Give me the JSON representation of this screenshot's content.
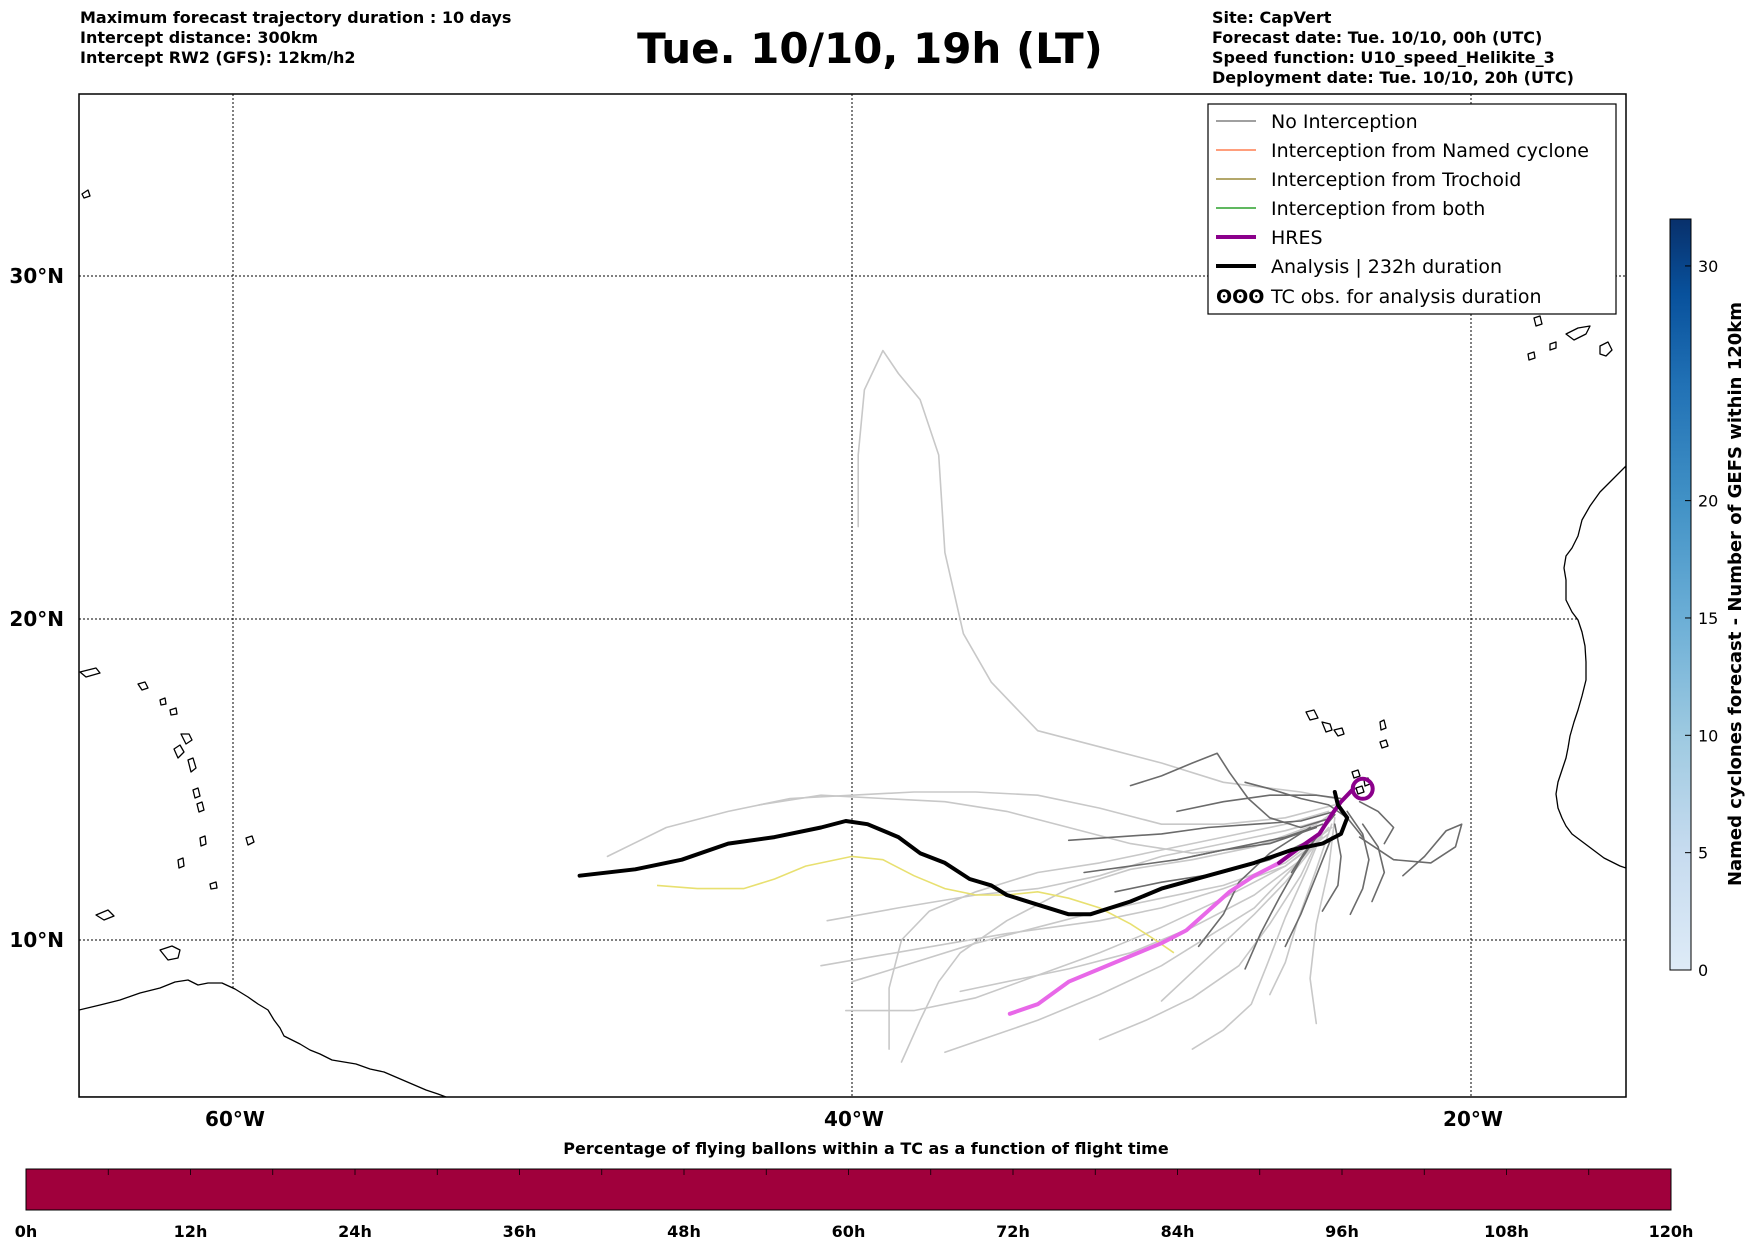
{
  "header": {
    "left_lines": [
      "Maximum forecast trajectory duration : 10 days",
      "Intercept distance: 300km",
      "Intercept RW2 (GFS):  12km/h2"
    ],
    "title": "Tue. 10/10, 19h (LT)",
    "right_lines": [
      "Site: CapVert",
      "Forecast date: Tue. 10/10, 00h (UTC)",
      "Speed function: U10_speed_Helikite_3",
      "Deployment date: Tue. 10/10, 20h (UTC)"
    ]
  },
  "map": {
    "lon_range": [
      -65,
      -15
    ],
    "lat_range": [
      5.5,
      34.5
    ],
    "lat_labels": [
      "30°N",
      "20°N",
      "10°N"
    ],
    "lon_labels": [
      "60°W",
      "40°W",
      "20°W"
    ],
    "gridline_style": "dotted",
    "land_color": "#ffffff",
    "coast_color": "#000000"
  },
  "legend": {
    "placement": "top-right",
    "items": [
      {
        "label": "No Interception",
        "color": "#808080"
      },
      {
        "label": "Interception from Named cyclone",
        "color": "#ff7f50"
      },
      {
        "label": "Interception from Trochoid",
        "color": "#9a8a3a"
      },
      {
        "label": "Interception from both",
        "color": "#2ca02c"
      },
      {
        "label": "HRES",
        "color": "#8b008b"
      },
      {
        "label": "Analysis | 232h duration",
        "color": "#000000"
      },
      {
        "label": "TC obs. for analysis duration",
        "color": "#000000",
        "icon": "tc-symbols-icon",
        "glyph": "ʘʘʘ"
      }
    ]
  },
  "colorbar_right": {
    "label": "Named cyclones forecast - Number of GEFS within 120km",
    "ticks": [
      "0",
      "5",
      "10",
      "15",
      "20",
      "30"
    ],
    "tick_values": [
      0,
      5,
      10,
      15,
      20,
      30
    ],
    "range": [
      0,
      32
    ],
    "colormap": "Blues"
  },
  "colorbar_bottom": {
    "title": "Percentage of flying ballons within a TC as a function of flight time",
    "ticks": [
      "0h",
      "12h",
      "24h",
      "36h",
      "48h",
      "60h",
      "72h",
      "84h",
      "96h",
      "108h",
      "120h"
    ],
    "color": "#a0003c"
  },
  "trajectories": {
    "analysis": [
      [
        -48.8,
        12.0
      ],
      [
        -47,
        12.2
      ],
      [
        -45.5,
        12.5
      ],
      [
        -44,
        13.0
      ],
      [
        -42.5,
        13.2
      ],
      [
        -41,
        13.5
      ],
      [
        -40.2,
        13.7
      ],
      [
        -39.5,
        13.6
      ],
      [
        -38.5,
        13.2
      ],
      [
        -37.8,
        12.7
      ],
      [
        -37,
        12.4
      ],
      [
        -36.2,
        11.9
      ],
      [
        -35.5,
        11.7
      ],
      [
        -35,
        11.4
      ],
      [
        -34,
        11.1
      ],
      [
        -33,
        10.8
      ],
      [
        -32.3,
        10.8
      ],
      [
        -31,
        11.2
      ],
      [
        -30,
        11.6
      ],
      [
        -28.5,
        12.0
      ],
      [
        -27,
        12.4
      ],
      [
        -25.8,
        12.8
      ],
      [
        -24.8,
        13.0
      ],
      [
        -24.2,
        13.3
      ],
      [
        -24.0,
        13.8
      ],
      [
        -24.3,
        14.2
      ],
      [
        -24.4,
        14.6
      ]
    ],
    "hres": [
      [
        -34.9,
        7.7
      ],
      [
        -34,
        8.0
      ],
      [
        -33,
        8.7
      ],
      [
        -32,
        9.1
      ],
      [
        -31,
        9.5
      ],
      [
        -30,
        9.9
      ],
      [
        -29.2,
        10.3
      ],
      [
        -28.5,
        10.9
      ],
      [
        -27.8,
        11.5
      ],
      [
        -27,
        12.0
      ],
      [
        -26.2,
        12.4
      ],
      [
        -25.5,
        12.9
      ],
      [
        -24.9,
        13.3
      ],
      [
        -24.5,
        13.9
      ],
      [
        -24.2,
        14.3
      ],
      [
        -23.8,
        14.7
      ]
    ],
    "hres_dark_segment": [
      [
        -26.2,
        12.4
      ],
      [
        -25.5,
        12.9
      ],
      [
        -24.9,
        13.3
      ],
      [
        -24.5,
        13.9
      ],
      [
        -24.2,
        14.3
      ],
      [
        -23.8,
        14.7
      ]
    ],
    "hres_loop": [
      -23.5,
      14.7
    ],
    "trochoid": [
      [
        -46.3,
        11.7
      ],
      [
        -45,
        11.6
      ],
      [
        -43.5,
        11.6
      ],
      [
        -42.5,
        11.9
      ],
      [
        -41.5,
        12.3
      ],
      [
        -40,
        12.6
      ],
      [
        -39,
        12.5
      ],
      [
        -38,
        12.0
      ],
      [
        -37,
        11.6
      ],
      [
        -36,
        11.4
      ],
      [
        -35,
        11.4
      ],
      [
        -34,
        11.5
      ],
      [
        -33,
        11.3
      ],
      [
        -32,
        11.0
      ],
      [
        -31,
        10.5
      ],
      [
        -30.2,
        10.0
      ],
      [
        -29.6,
        9.6
      ]
    ],
    "light_gray": [
      [
        [
          -39.8,
          22.8
        ],
        [
          -39.8,
          25
        ],
        [
          -39.6,
          27
        ],
        [
          -39.0,
          28.2
        ],
        [
          -38.5,
          27.5
        ],
        [
          -37.8,
          26.7
        ],
        [
          -37.2,
          25
        ],
        [
          -37.0,
          22
        ],
        [
          -36.4,
          19.5
        ],
        [
          -35.5,
          18
        ],
        [
          -34,
          16.5
        ],
        [
          -32,
          16
        ],
        [
          -30,
          15.5
        ],
        [
          -28,
          14.9
        ],
        [
          -25.5,
          14.6
        ],
        [
          -24.4,
          14.4
        ]
      ],
      [
        [
          -47.9,
          12.6
        ],
        [
          -46,
          13.5
        ],
        [
          -44,
          14.0
        ],
        [
          -42,
          14.4
        ],
        [
          -40,
          14.5
        ],
        [
          -38,
          14.6
        ],
        [
          -36,
          14.6
        ],
        [
          -34,
          14.5
        ],
        [
          -32,
          14.1
        ],
        [
          -30,
          13.6
        ],
        [
          -28,
          13.6
        ],
        [
          -26,
          13.8
        ],
        [
          -24.4,
          14.2
        ]
      ],
      [
        [
          -43,
          14.2
        ],
        [
          -41,
          14.5
        ],
        [
          -39,
          14.4
        ],
        [
          -37,
          14.3
        ],
        [
          -35,
          14.0
        ],
        [
          -33,
          13.5
        ],
        [
          -31,
          13.0
        ],
        [
          -29,
          12.7
        ],
        [
          -27,
          12.9
        ],
        [
          -25,
          13.6
        ],
        [
          -24.4,
          14.0
        ]
      ],
      [
        [
          -40.8,
          10.6
        ],
        [
          -38.5,
          11.0
        ],
        [
          -36,
          11.4
        ],
        [
          -34,
          11.6
        ],
        [
          -32,
          12.0
        ],
        [
          -30,
          12.6
        ],
        [
          -28,
          13.0
        ],
        [
          -26,
          13.4
        ],
        [
          -24.5,
          13.8
        ]
      ],
      [
        [
          -40,
          8.7
        ],
        [
          -38,
          9.3
        ],
        [
          -36,
          9.9
        ],
        [
          -34,
          10.4
        ],
        [
          -32,
          10.9
        ],
        [
          -30,
          11.3
        ],
        [
          -28,
          11.7
        ],
        [
          -26,
          12.4
        ],
        [
          -24.5,
          13.5
        ]
      ],
      [
        [
          -40.2,
          7.8
        ],
        [
          -38,
          7.8
        ],
        [
          -36,
          8.2
        ],
        [
          -34,
          8.9
        ],
        [
          -32,
          9.6
        ],
        [
          -30,
          10.4
        ],
        [
          -28,
          11.3
        ],
        [
          -26,
          12.3
        ],
        [
          -24.6,
          13.3
        ]
      ],
      [
        [
          -38.4,
          6.2
        ],
        [
          -37.8,
          7.5
        ],
        [
          -37.2,
          8.7
        ],
        [
          -36.5,
          9.6
        ],
        [
          -35,
          10.6
        ],
        [
          -33,
          11.6
        ],
        [
          -31,
          12.2
        ],
        [
          -29,
          12.5
        ],
        [
          -27,
          12.9
        ],
        [
          -25,
          13.5
        ]
      ],
      [
        [
          -38.8,
          6.6
        ],
        [
          -38.8,
          8.5
        ],
        [
          -38.4,
          10.0
        ],
        [
          -37.5,
          10.9
        ],
        [
          -36,
          11.5
        ],
        [
          -34,
          12.1
        ],
        [
          -32,
          12.4
        ],
        [
          -30,
          12.8
        ],
        [
          -28,
          13.2
        ],
        [
          -26,
          13.6
        ],
        [
          -24.6,
          14.0
        ]
      ],
      [
        [
          -37,
          6.5
        ],
        [
          -35.5,
          7.0
        ],
        [
          -34,
          7.5
        ],
        [
          -32,
          8.3
        ],
        [
          -30,
          9.2
        ],
        [
          -28.5,
          10.1
        ],
        [
          -27,
          11.0
        ],
        [
          -25.5,
          12.5
        ],
        [
          -24.6,
          13.5
        ]
      ],
      [
        [
          -32,
          6.9
        ],
        [
          -30.5,
          7.5
        ],
        [
          -29,
          8.2
        ],
        [
          -27.5,
          9.2
        ],
        [
          -26.5,
          10.5
        ],
        [
          -25.5,
          12
        ],
        [
          -24.8,
          13.4
        ]
      ],
      [
        [
          -29,
          6.6
        ],
        [
          -28,
          7.2
        ],
        [
          -27.1,
          8.0
        ],
        [
          -26.6,
          9.2
        ],
        [
          -26,
          10.7
        ],
        [
          -25.3,
          12.2
        ],
        [
          -24.7,
          13.6
        ]
      ],
      [
        [
          -26.5,
          8.3
        ],
        [
          -26,
          9.3
        ],
        [
          -25.6,
          10.6
        ],
        [
          -25.0,
          12.2
        ],
        [
          -24.5,
          13.6
        ]
      ],
      [
        [
          -25,
          7.4
        ],
        [
          -25.2,
          8.8
        ],
        [
          -25.0,
          10.5
        ],
        [
          -24.6,
          12.2
        ],
        [
          -24.4,
          13.8
        ]
      ],
      [
        [
          -30,
          8.1
        ],
        [
          -29,
          9.0
        ],
        [
          -28,
          9.9
        ],
        [
          -27,
          10.8
        ],
        [
          -26,
          11.8
        ],
        [
          -25,
          13.0
        ]
      ],
      [
        [
          -41,
          9.2
        ],
        [
          -38,
          9.7
        ],
        [
          -35,
          10.2
        ],
        [
          -32,
          10.6
        ],
        [
          -30,
          11.0
        ],
        [
          -28,
          11.6
        ],
        [
          -26,
          12.3
        ],
        [
          -24.8,
          13.2
        ]
      ],
      [
        [
          -36.5,
          8.4
        ],
        [
          -34.5,
          8.8
        ],
        [
          -33,
          9.1
        ],
        [
          -31,
          9.6
        ],
        [
          -29,
          10.4
        ],
        [
          -27,
          11.4
        ],
        [
          -25.5,
          12.5
        ]
      ]
    ],
    "dark_gray": [
      [
        [
          -31,
          14.8
        ],
        [
          -30,
          15.1
        ],
        [
          -29,
          15.5
        ],
        [
          -28.2,
          15.8
        ],
        [
          -27.8,
          15.2
        ],
        [
          -27.2,
          14.4
        ],
        [
          -26.5,
          13.8
        ],
        [
          -25.5,
          13.5
        ],
        [
          -24.5,
          13.8
        ]
      ],
      [
        [
          -33,
          13.1
        ],
        [
          -31.5,
          13.2
        ],
        [
          -30,
          13.3
        ],
        [
          -28.5,
          13.5
        ],
        [
          -27,
          13.6
        ],
        [
          -25.5,
          13.7
        ],
        [
          -24.4,
          14.0
        ]
      ],
      [
        [
          -32.5,
          12.1
        ],
        [
          -31,
          12.3
        ],
        [
          -29.5,
          12.5
        ],
        [
          -28,
          12.8
        ],
        [
          -26.5,
          13.0
        ],
        [
          -25,
          13.5
        ]
      ],
      [
        [
          -31.5,
          11.5
        ],
        [
          -30,
          11.8
        ],
        [
          -28,
          12.1
        ],
        [
          -26.5,
          12.5
        ],
        [
          -25,
          13.2
        ]
      ],
      [
        [
          -28.8,
          9.8
        ],
        [
          -28,
          10.8
        ],
        [
          -27.5,
          11.8
        ],
        [
          -26.5,
          12.7
        ],
        [
          -25.2,
          13.5
        ]
      ],
      [
        [
          -27.3,
          9.1
        ],
        [
          -26.8,
          10.2
        ],
        [
          -26.2,
          11.3
        ],
        [
          -25.5,
          12.5
        ],
        [
          -24.7,
          13.6
        ]
      ],
      [
        [
          -26,
          9.8
        ],
        [
          -25.5,
          10.8
        ],
        [
          -25.0,
          12.0
        ],
        [
          -24.5,
          13.2
        ]
      ],
      [
        [
          -24.8,
          10.9
        ],
        [
          -24.3,
          11.7
        ],
        [
          -24.2,
          12.6
        ],
        [
          -24.4,
          13.6
        ]
      ],
      [
        [
          -23.9,
          10.8
        ],
        [
          -23.5,
          11.6
        ],
        [
          -23.3,
          12.5
        ],
        [
          -23.5,
          13.3
        ],
        [
          -24.0,
          14.0
        ]
      ],
      [
        [
          -22.2,
          12.0
        ],
        [
          -21.5,
          12.6
        ],
        [
          -20.8,
          13.4
        ],
        [
          -20.3,
          13.6
        ],
        [
          -20.5,
          12.9
        ],
        [
          -21.3,
          12.4
        ],
        [
          -22.5,
          12.5
        ],
        [
          -23.6,
          13.2
        ]
      ],
      [
        [
          -23.2,
          11.2
        ],
        [
          -22.8,
          12.1
        ],
        [
          -23.0,
          12.9
        ],
        [
          -23.5,
          13.6
        ]
      ],
      [
        [
          -29.5,
          14.0
        ],
        [
          -28,
          14.3
        ],
        [
          -26.5,
          14.5
        ],
        [
          -25,
          14.5
        ],
        [
          -24.2,
          14.4
        ]
      ],
      [
        [
          -27.3,
          14.9
        ],
        [
          -26.5,
          14.7
        ],
        [
          -25.5,
          14.4
        ],
        [
          -24.6,
          14.2
        ],
        [
          -24.0,
          13.8
        ],
        [
          -23.5,
          13.2
        ]
      ],
      [
        [
          -29,
          12.6
        ],
        [
          -27.5,
          12.9
        ],
        [
          -26,
          13.2
        ],
        [
          -24.8,
          13.6
        ]
      ],
      [
        [
          -25.8,
          12.1
        ],
        [
          -25.4,
          12.7
        ],
        [
          -24.9,
          13.3
        ],
        [
          -24.4,
          13.9
        ]
      ],
      [
        [
          -22.8,
          13.0
        ],
        [
          -22.5,
          13.5
        ],
        [
          -23.0,
          14.0
        ],
        [
          -23.6,
          14.3
        ]
      ]
    ]
  }
}
